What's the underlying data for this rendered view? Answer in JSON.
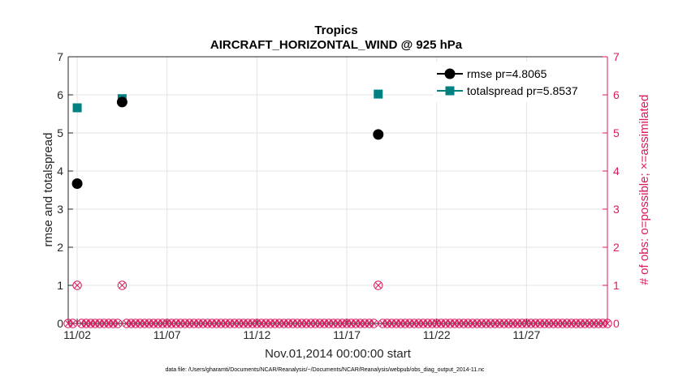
{
  "chart_data": {
    "type": "scatter",
    "title": "Tropics",
    "subtitle": "AIRCRAFT_HORIZONTAL_WIND @ 925 hPa",
    "xlabel": "Nov.01,2014 00:00:00 start",
    "ylabel": "rmse and totalspread",
    "ylabel_right": "# of obs: o=possible; ×=assimilated",
    "footnote": "data file: /Users/gharamti/Documents/NCAR/Reanalysis/~/Documents/NCAR/Reanalysis/webpub/obs_diag_output_2014-11.nc",
    "xlim": [
      1.5,
      31.5
    ],
    "ylim": [
      0,
      7
    ],
    "ylim_right": [
      0,
      7
    ],
    "x_ticks": [
      2,
      7,
      12,
      17,
      22,
      27
    ],
    "x_tick_labels": [
      "11/02",
      "11/07",
      "11/12",
      "11/17",
      "11/22",
      "11/27"
    ],
    "y_ticks": [
      0,
      1,
      2,
      3,
      4,
      5,
      6,
      7
    ],
    "grid": true,
    "legend_position": "top-right",
    "series": [
      {
        "name": "rmse pr=4.8065",
        "color": "#000000",
        "marker": "circle",
        "points": [
          [
            2.0,
            3.67
          ],
          [
            4.5,
            5.81
          ],
          [
            18.75,
            4.96
          ]
        ]
      },
      {
        "name": "totalspread pr=5.8537",
        "color": "#008080",
        "marker": "square",
        "points": [
          [
            2.0,
            5.66
          ],
          [
            4.5,
            5.9
          ],
          [
            18.75,
            6.02
          ]
        ]
      }
    ],
    "obs_possible": {
      "color": "#d81b60",
      "x_start": 1.5,
      "x_step": 0.25,
      "x_end": 31.5,
      "nonzero": [
        [
          2.0,
          1
        ],
        [
          4.5,
          1
        ],
        [
          18.75,
          1
        ]
      ]
    },
    "obs_assimilated": {
      "color": "#d81b60",
      "nonzero": [
        [
          2.0,
          1
        ],
        [
          4.5,
          1
        ],
        [
          18.75,
          1
        ]
      ]
    }
  }
}
